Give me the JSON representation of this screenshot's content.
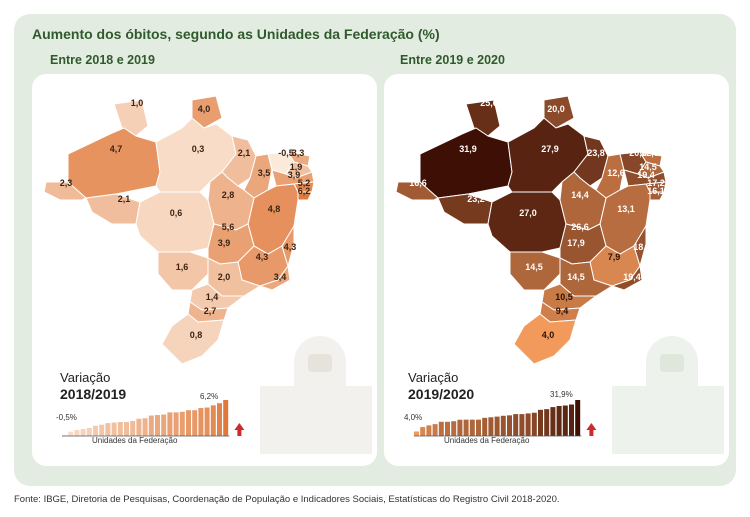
{
  "title": "Aumento dos óbitos, segundo as Unidades da Federação (%)",
  "footer": "Fonte: IBGE, Diretoria de Pesquisas, Coordenação de População e Indicadores Sociais, Estatísticas do Registro Civil 2018-2020.",
  "colors": {
    "frame_bg": "#e3ece0",
    "title_green": "#2f5a2c",
    "arrow_red": "#d0282b",
    "scale_2018": [
      "#f9e3d0",
      "#f4c49d",
      "#eea471",
      "#e8864a"
    ],
    "scale_2020": [
      "#e98a4e",
      "#c4602e",
      "#8f3a1a",
      "#4a1407"
    ]
  },
  "panels": [
    {
      "id": "2018_2019",
      "title": "Entre 2018 e 2019",
      "variation_label": "Variação",
      "period": "2018/2019",
      "min_label": "-0,5%",
      "max_label": "6,2%",
      "axis_label": "Unidades da Federação",
      "states": [
        {
          "uf": "RR",
          "value": "1,0",
          "num": 1.0
        },
        {
          "uf": "AP",
          "value": "4,0",
          "num": 4.0
        },
        {
          "uf": "AM",
          "value": "4,7",
          "num": 4.7
        },
        {
          "uf": "PA",
          "value": "0,3",
          "num": 0.3
        },
        {
          "uf": "AC",
          "value": "2,3",
          "num": 2.3
        },
        {
          "uf": "RO",
          "value": "2,1",
          "num": 2.1
        },
        {
          "uf": "MT",
          "value": "0,6",
          "num": 0.6
        },
        {
          "uf": "MA",
          "value": "2,1",
          "num": 2.1
        },
        {
          "uf": "PI",
          "value": "3,5",
          "num": 3.5
        },
        {
          "uf": "CE",
          "value": "-0,5",
          "num": -0.5
        },
        {
          "uf": "RN",
          "value": "3,3",
          "num": 3.3
        },
        {
          "uf": "PB",
          "value": "1,9",
          "num": 1.9
        },
        {
          "uf": "PE",
          "value": "3,9",
          "num": 3.9
        },
        {
          "uf": "AL",
          "value": "5,2",
          "num": 5.2
        },
        {
          "uf": "SE",
          "value": "6,2",
          "num": 6.2
        },
        {
          "uf": "BA",
          "value": "4,8",
          "num": 4.8
        },
        {
          "uf": "TO",
          "value": "2,8",
          "num": 2.8
        },
        {
          "uf": "DF",
          "value": "5,6",
          "num": 5.6
        },
        {
          "uf": "GO",
          "value": "3,9",
          "num": 3.9
        },
        {
          "uf": "MG",
          "value": "4,3",
          "num": 4.3
        },
        {
          "uf": "ES",
          "value": "4,3",
          "num": 4.3
        },
        {
          "uf": "RJ",
          "value": "3,4",
          "num": 3.4
        },
        {
          "uf": "MS",
          "value": "1,6",
          "num": 1.6
        },
        {
          "uf": "SP",
          "value": "2,0",
          "num": 2.0
        },
        {
          "uf": "PR",
          "value": "1,4",
          "num": 1.4
        },
        {
          "uf": "SC",
          "value": "2,7",
          "num": 2.7
        },
        {
          "uf": "RS",
          "value": "0,8",
          "num": 0.8
        }
      ]
    },
    {
      "id": "2019_2020",
      "title": "Entre 2019 e 2020",
      "variation_label": "Variação",
      "period": "2019/2020",
      "min_label": "4,0%",
      "max_label": "31,9%",
      "axis_label": "Unidades da Federação",
      "states": [
        {
          "uf": "RR",
          "value": "25,6",
          "num": 25.6
        },
        {
          "uf": "AP",
          "value": "20,0",
          "num": 20.0
        },
        {
          "uf": "AM",
          "value": "31,9",
          "num": 31.9
        },
        {
          "uf": "PA",
          "value": "27,9",
          "num": 27.9
        },
        {
          "uf": "AC",
          "value": "16,6",
          "num": 16.6
        },
        {
          "uf": "RO",
          "value": "23,2",
          "num": 23.2
        },
        {
          "uf": "MT",
          "value": "27,0",
          "num": 27.0
        },
        {
          "uf": "MA",
          "value": "23,8",
          "num": 23.8
        },
        {
          "uf": "PI",
          "value": "12,6",
          "num": 12.6
        },
        {
          "uf": "CE",
          "value": "20,6",
          "num": 20.6
        },
        {
          "uf": "RN",
          "value": "12,6",
          "num": 12.6
        },
        {
          "uf": "PB",
          "value": "14,5",
          "num": 14.5
        },
        {
          "uf": "PE",
          "value": "19,4",
          "num": 19.4
        },
        {
          "uf": "AL",
          "value": "17,2",
          "num": 17.2
        },
        {
          "uf": "SE",
          "value": "16,1",
          "num": 16.1
        },
        {
          "uf": "BA",
          "value": "13,1",
          "num": 13.1
        },
        {
          "uf": "TO",
          "value": "14,4",
          "num": 14.4
        },
        {
          "uf": "DF",
          "value": "26,6",
          "num": 26.6
        },
        {
          "uf": "GO",
          "value": "17,9",
          "num": 17.9
        },
        {
          "uf": "MG",
          "value": "7,9",
          "num": 7.9
        },
        {
          "uf": "ES",
          "value": "18,3",
          "num": 18.3
        },
        {
          "uf": "RJ",
          "value": "19,4",
          "num": 19.4
        },
        {
          "uf": "MS",
          "value": "14,5",
          "num": 14.5
        },
        {
          "uf": "SP",
          "value": "14,5",
          "num": 14.5
        },
        {
          "uf": "PR",
          "value": "10,5",
          "num": 10.5
        },
        {
          "uf": "SC",
          "value": "9,4",
          "num": 9.4
        },
        {
          "uf": "RS",
          "value": "4,0",
          "num": 4.0
        }
      ]
    }
  ]
}
